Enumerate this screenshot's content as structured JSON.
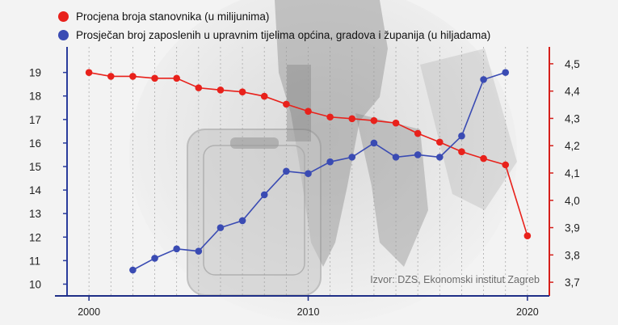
{
  "colors": {
    "red_series": "#e8211b",
    "blue_series": "#3a4bb3",
    "left_axis": "#2a3c9c",
    "right_axis": "#d51f1a",
    "x_axis": "#1f2f87",
    "grid": "#9a9a9a"
  },
  "source": "Izvor: DZS, Ekonomski institut Zagreb",
  "chart_data": {
    "type": "line",
    "x_ticks": [
      2000,
      2010,
      2020
    ],
    "xlim": [
      1999,
      2021
    ],
    "left_axis": {
      "ticks": [
        10,
        11,
        12,
        13,
        14,
        15,
        16,
        17,
        18,
        19
      ],
      "ylim": [
        9.5,
        19.95
      ]
    },
    "right_axis": {
      "ticks": [
        3.7,
        3.8,
        3.9,
        4.0,
        4.1,
        4.2,
        4.3,
        4.4,
        4.5
      ],
      "tick_labels": [
        "3,7",
        "3,8",
        "3,9",
        "4,0",
        "4,1",
        "4,2",
        "4,3",
        "4,4",
        "4,5"
      ],
      "ylim": [
        3.65,
        4.55
      ]
    },
    "grid": "vertical dashed",
    "series": [
      {
        "name": "Procjena broja stanovnika (u milijunima)",
        "axis": "right",
        "color": "#e8211b",
        "x": [
          2000,
          2001,
          2002,
          2003,
          2004,
          2005,
          2006,
          2007,
          2008,
          2009,
          2010,
          2011,
          2012,
          2013,
          2014,
          2015,
          2016,
          2017,
          2018,
          2019,
          2020
        ],
        "y": [
          4.468,
          4.454,
          4.454,
          4.447,
          4.447,
          4.412,
          4.404,
          4.397,
          4.381,
          4.352,
          4.326,
          4.305,
          4.299,
          4.292,
          4.283,
          4.245,
          4.213,
          4.178,
          4.153,
          4.13,
          3.87
        ]
      },
      {
        "name": "Prosječan broj zaposlenih u upravnim tijelima općina, gradova i županija (u hiljadama)",
        "axis": "left",
        "color": "#3a4bb3",
        "x": [
          2002,
          2003,
          2004,
          2005,
          2006,
          2007,
          2008,
          2009,
          2010,
          2011,
          2012,
          2013,
          2014,
          2015,
          2016,
          2017,
          2018,
          2019
        ],
        "y": [
          10.6,
          11.1,
          11.5,
          11.4,
          12.4,
          12.7,
          13.8,
          14.8,
          14.7,
          15.2,
          15.4,
          16.0,
          15.4,
          15.5,
          15.4,
          16.3,
          18.7,
          19.0
        ]
      }
    ]
  }
}
